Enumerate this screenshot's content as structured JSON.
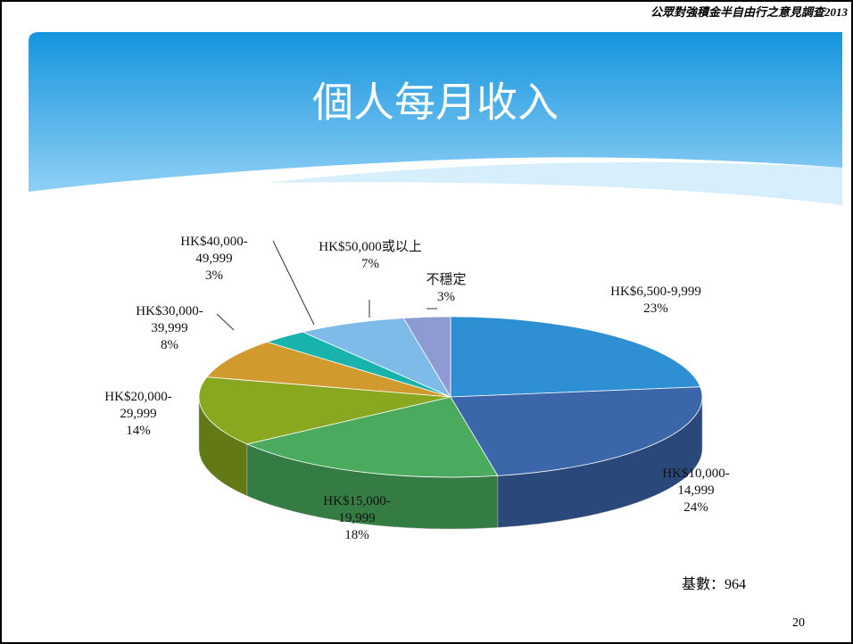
{
  "header_note": "公眾對強積金半自由行之意見調查2013",
  "chart_data": {
    "type": "pie",
    "title": "個人每月收入",
    "categories": [
      "HK$6,500-9,999",
      "HK$10,000-14,999",
      "HK$15,000-19,999",
      "HK$20,000-29,999",
      "HK$30,000-39,999",
      "HK$40,000-49,999",
      "HK$50,000或以上",
      "不穩定"
    ],
    "values": [
      23,
      24,
      18,
      14,
      8,
      3,
      7,
      3
    ],
    "value_labels": [
      "23%",
      "24%",
      "18%",
      "14%",
      "8%",
      "3%",
      "7%",
      "3%"
    ],
    "colors": [
      "#2e90d2",
      "#3b66a9",
      "#4aab5e",
      "#8aa81f",
      "#d19a2e",
      "#19b3ae",
      "#7fbbe9",
      "#8d9bd2"
    ]
  },
  "base_note": "基數：964",
  "page_number": "20"
}
